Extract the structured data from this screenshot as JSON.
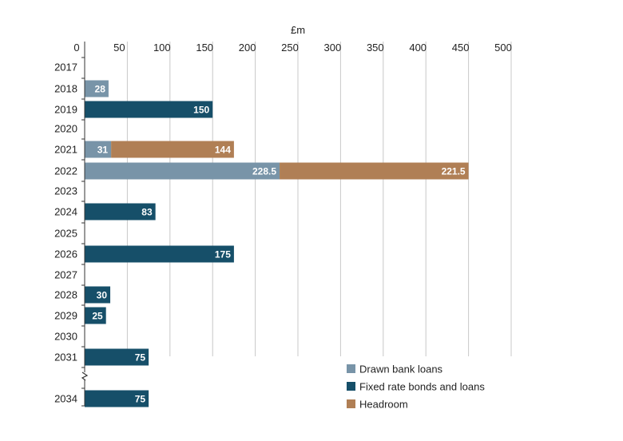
{
  "chart_data": {
    "type": "bar",
    "orientation": "horizontal",
    "stacked": true,
    "unit_label": "£m",
    "xlim": [
      0,
      500
    ],
    "xticks": [
      "0",
      "50",
      "100",
      "150",
      "200",
      "250",
      "300",
      "350",
      "400",
      "450",
      "500"
    ],
    "grid": true,
    "axis_break_between": [
      "2031",
      "2034"
    ],
    "categories": [
      "2017",
      "2018",
      "2019",
      "2020",
      "2021",
      "2022",
      "2023",
      "2024",
      "2025",
      "2026",
      "2027",
      "2028",
      "2029",
      "2030",
      "2031",
      "2034"
    ],
    "series": [
      {
        "name": "Drawn bank loans",
        "color": "#7894a8",
        "values": [
          null,
          28,
          null,
          null,
          31,
          228.5,
          null,
          null,
          null,
          null,
          null,
          null,
          null,
          null,
          null,
          null
        ],
        "labels": [
          null,
          "28",
          null,
          null,
          "31",
          "228.5",
          null,
          null,
          null,
          null,
          null,
          null,
          null,
          null,
          null,
          null
        ]
      },
      {
        "name": "Fixed rate bonds and loans",
        "color": "#164f69",
        "values": [
          null,
          null,
          150,
          null,
          null,
          null,
          null,
          83,
          null,
          175,
          null,
          30,
          25,
          null,
          75,
          75
        ],
        "labels": [
          null,
          null,
          "150",
          null,
          null,
          null,
          null,
          "83",
          null,
          "175",
          null,
          "30",
          "25",
          null,
          "75",
          "75"
        ]
      },
      {
        "name": "Headroom",
        "color": "#b07f55",
        "values": [
          null,
          null,
          null,
          null,
          144,
          221.5,
          null,
          null,
          null,
          null,
          null,
          null,
          null,
          null,
          null,
          null
        ],
        "labels": [
          null,
          null,
          null,
          null,
          "144",
          "221.5",
          null,
          null,
          null,
          null,
          null,
          null,
          null,
          null,
          null,
          null
        ]
      }
    ],
    "legend_position": "bottom-right"
  }
}
